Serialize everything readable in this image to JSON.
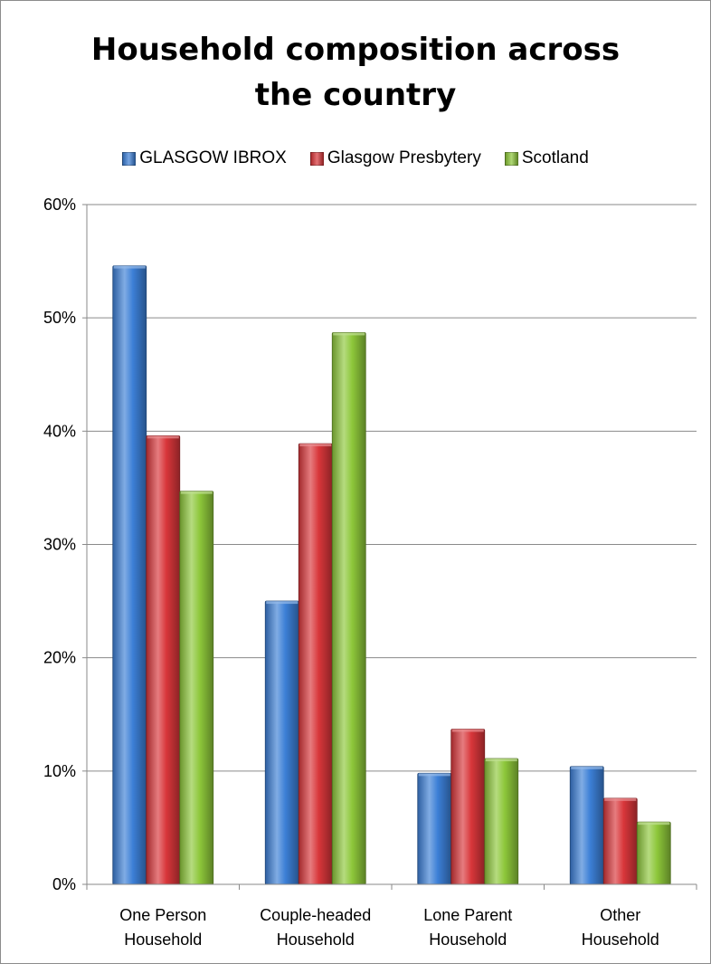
{
  "chart_data": {
    "type": "bar",
    "title_lines": [
      "Household composition across",
      "the country"
    ],
    "categories": [
      [
        "One Person",
        "Household"
      ],
      [
        "Couple-headed",
        "Household"
      ],
      [
        "Lone Parent",
        "Household"
      ],
      [
        "Other",
        "Household"
      ]
    ],
    "series": [
      {
        "name": "GLASGOW IBROX",
        "color": "#3c7fd6",
        "values": [
          54.6,
          25.0,
          9.8,
          10.4
        ]
      },
      {
        "name": "Glasgow Presbytery",
        "color": "#d8363a",
        "values": [
          39.6,
          38.9,
          13.7,
          7.6
        ]
      },
      {
        "name": "Scotland",
        "color": "#8dc73a",
        "values": [
          34.7,
          48.7,
          11.1,
          5.5
        ]
      }
    ],
    "ylim": [
      0,
      60
    ],
    "yticks": [
      0,
      10,
      20,
      30,
      40,
      50,
      60
    ],
    "ytick_labels": [
      "0%",
      "10%",
      "20%",
      "30%",
      "40%",
      "50%",
      "60%"
    ],
    "grid": true,
    "legend_position": "top"
  }
}
